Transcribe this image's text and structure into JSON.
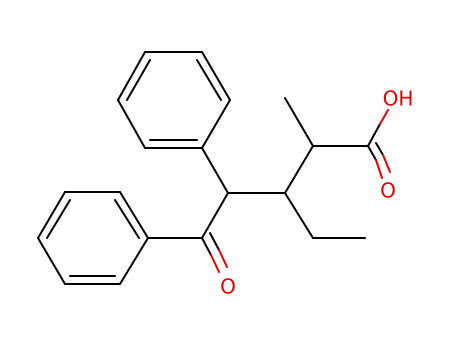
{
  "atoms": {
    "acid_hydroxyl": "OH",
    "acid_carbonyl_oxygen": "O",
    "ketone_oxygen": "O"
  }
}
